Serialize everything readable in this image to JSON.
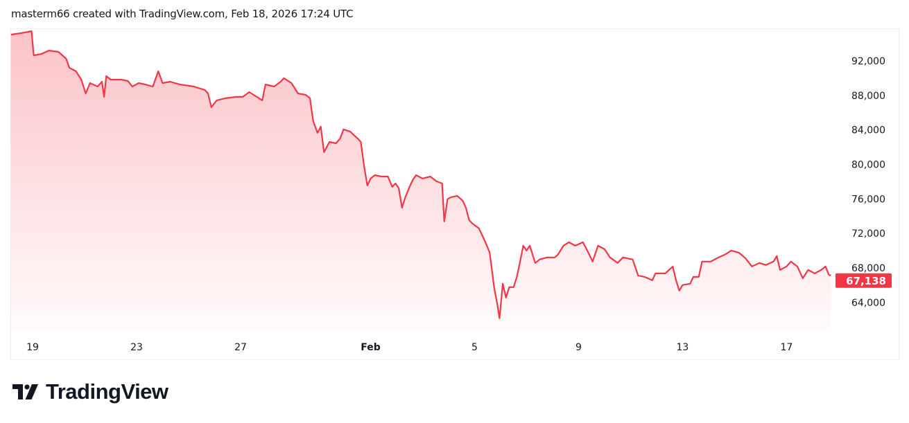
{
  "header": {
    "text": "masterm66 created with TradingView.com, Feb 18, 2026 17:24 UTC"
  },
  "logo": {
    "text": "TradingView"
  },
  "colors": {
    "line": "#f23645",
    "fill": "#f23645",
    "price_tag": "#f23645",
    "text": "#131722"
  },
  "chart_data": {
    "type": "area",
    "title": "",
    "xlabel": "",
    "ylabel": "",
    "last_price_label": "67,138",
    "last_price": 67138,
    "xlim": [
      "2026-01-18T03:30",
      "2026-02-18T18:00"
    ],
    "ylim": [
      60700,
      95770
    ],
    "x_ticks": [
      {
        "date": "2026-01-19T00:00",
        "label": "19"
      },
      {
        "date": "2026-01-23T00:00",
        "label": "23"
      },
      {
        "date": "2026-01-27T00:00",
        "label": "27"
      },
      {
        "date": "2026-02-01T00:00",
        "label": "Feb"
      },
      {
        "date": "2026-02-05T00:00",
        "label": "5"
      },
      {
        "date": "2026-02-09T00:00",
        "label": "9"
      },
      {
        "date": "2026-02-13T00:00",
        "label": "13"
      },
      {
        "date": "2026-02-17T00:00",
        "label": "17"
      }
    ],
    "y_ticks": [
      {
        "value": 92000,
        "label": "92,000"
      },
      {
        "value": 88000,
        "label": "88,000"
      },
      {
        "value": 84000,
        "label": "84,000"
      },
      {
        "value": 80000,
        "label": "80,000"
      },
      {
        "value": 76000,
        "label": "76,000"
      },
      {
        "value": 72000,
        "label": "72,000"
      },
      {
        "value": 68000,
        "label": "68,000"
      },
      {
        "value": 64000,
        "label": "64,000"
      }
    ],
    "grid": false,
    "points": [
      [
        "2026-01-18T04:00",
        95050
      ],
      [
        "2026-01-18T13:00",
        95210
      ],
      [
        "2026-01-18T23:00",
        95450
      ],
      [
        "2026-01-19T01:00",
        92640
      ],
      [
        "2026-01-19T08:00",
        92800
      ],
      [
        "2026-01-19T15:00",
        93200
      ],
      [
        "2026-01-20T00:00",
        93040
      ],
      [
        "2026-01-20T07:00",
        92240
      ],
      [
        "2026-01-20T10:00",
        91200
      ],
      [
        "2026-01-20T16:00",
        90800
      ],
      [
        "2026-01-20T21:00",
        89830
      ],
      [
        "2026-01-21T01:00",
        88230
      ],
      [
        "2026-01-21T05:00",
        89430
      ],
      [
        "2026-01-21T12:00",
        89030
      ],
      [
        "2026-01-21T16:00",
        89590
      ],
      [
        "2026-01-21T18:00",
        87830
      ],
      [
        "2026-01-21T20:00",
        90240
      ],
      [
        "2026-01-22T00:00",
        89830
      ],
      [
        "2026-01-22T10:00",
        89830
      ],
      [
        "2026-01-22T16:00",
        89670
      ],
      [
        "2026-01-22T20:00",
        89030
      ],
      [
        "2026-01-23T02:00",
        89430
      ],
      [
        "2026-01-23T08:00",
        89270
      ],
      [
        "2026-01-23T15:00",
        89030
      ],
      [
        "2026-01-23T20:00",
        90800
      ],
      [
        "2026-01-24T00:00",
        89430
      ],
      [
        "2026-01-24T07:00",
        89590
      ],
      [
        "2026-01-24T16:00",
        89270
      ],
      [
        "2026-01-25T05:00",
        89030
      ],
      [
        "2026-01-25T15:00",
        88630
      ],
      [
        "2026-01-25T18:00",
        88230
      ],
      [
        "2026-01-25T21:00",
        86630
      ],
      [
        "2026-01-26T02:00",
        87430
      ],
      [
        "2026-01-26T10:00",
        87670
      ],
      [
        "2026-01-26T20:00",
        87830
      ],
      [
        "2026-01-27T02:00",
        87830
      ],
      [
        "2026-01-27T08:00",
        88390
      ],
      [
        "2026-01-27T15:00",
        87830
      ],
      [
        "2026-01-27T20:00",
        87430
      ],
      [
        "2026-01-27T23:00",
        89270
      ],
      [
        "2026-01-28T07:00",
        89030
      ],
      [
        "2026-01-28T13:00",
        89590
      ],
      [
        "2026-01-28T16:00",
        90000
      ],
      [
        "2026-01-28T23:00",
        89430
      ],
      [
        "2026-01-29T05:00",
        88230
      ],
      [
        "2026-01-29T12:00",
        88070
      ],
      [
        "2026-01-29T16:00",
        87670
      ],
      [
        "2026-01-29T19:00",
        85020
      ],
      [
        "2026-01-29T23:00",
        83660
      ],
      [
        "2026-01-30T02:00",
        84380
      ],
      [
        "2026-01-30T05:00",
        81410
      ],
      [
        "2026-01-30T10:00",
        82610
      ],
      [
        "2026-01-30T16:00",
        82450
      ],
      [
        "2026-01-30T20:00",
        83020
      ],
      [
        "2026-01-30T23:00",
        84060
      ],
      [
        "2026-01-31T05:00",
        83820
      ],
      [
        "2026-01-31T12:00",
        83020
      ],
      [
        "2026-01-31T15:00",
        82610
      ],
      [
        "2026-01-31T18:00",
        79810
      ],
      [
        "2026-01-31T21:00",
        77560
      ],
      [
        "2026-02-01T00:00",
        78360
      ],
      [
        "2026-02-01T04:00",
        78760
      ],
      [
        "2026-02-01T10:00",
        78600
      ],
      [
        "2026-02-01T16:00",
        78600
      ],
      [
        "2026-02-01T20:00",
        77400
      ],
      [
        "2026-02-01T23:00",
        77800
      ],
      [
        "2026-02-02T02:00",
        77240
      ],
      [
        "2026-02-02T05:00",
        74990
      ],
      [
        "2026-02-02T08:00",
        76200
      ],
      [
        "2026-02-02T12:00",
        77400
      ],
      [
        "2026-02-02T15:00",
        78200
      ],
      [
        "2026-02-02T18:00",
        78760
      ],
      [
        "2026-02-03T00:00",
        78360
      ],
      [
        "2026-02-03T07:00",
        78600
      ],
      [
        "2026-02-03T13:00",
        78040
      ],
      [
        "2026-02-03T18:00",
        77800
      ],
      [
        "2026-02-03T20:00",
        73390
      ],
      [
        "2026-02-03T23:00",
        75960
      ],
      [
        "2026-02-04T02:00",
        76200
      ],
      [
        "2026-02-04T08:00",
        76360
      ],
      [
        "2026-02-04T13:00",
        75800
      ],
      [
        "2026-02-04T16:00",
        74990
      ],
      [
        "2026-02-04T19:00",
        73550
      ],
      [
        "2026-02-04T22:00",
        73150
      ],
      [
        "2026-02-05T04:00",
        72590
      ],
      [
        "2026-02-05T10:00",
        70980
      ],
      [
        "2026-02-05T14:00",
        69780
      ],
      [
        "2026-02-05T16:00",
        67770
      ],
      [
        "2026-02-05T18:00",
        65770
      ],
      [
        "2026-02-05T21:00",
        63760
      ],
      [
        "2026-02-05T23:00",
        62160
      ],
      [
        "2026-02-06T02:00",
        66170
      ],
      [
        "2026-02-06T05:00",
        64560
      ],
      [
        "2026-02-06T08:00",
        65770
      ],
      [
        "2026-02-06T12:00",
        65770
      ],
      [
        "2026-02-06T15:00",
        66970
      ],
      [
        "2026-02-06T18:00",
        68740
      ],
      [
        "2026-02-06T21:00",
        70580
      ],
      [
        "2026-02-07T00:00",
        70020
      ],
      [
        "2026-02-07T03:00",
        70580
      ],
      [
        "2026-02-07T08:00",
        68580
      ],
      [
        "2026-02-07T12:00",
        68980
      ],
      [
        "2026-02-07T19:00",
        69220
      ],
      [
        "2026-02-08T02:00",
        69220
      ],
      [
        "2026-02-08T05:00",
        69540
      ],
      [
        "2026-02-08T10:00",
        70580
      ],
      [
        "2026-02-08T15:00",
        70980
      ],
      [
        "2026-02-08T21:00",
        70580
      ],
      [
        "2026-02-09T04:00",
        70980
      ],
      [
        "2026-02-09T09:00",
        69780
      ],
      [
        "2026-02-09T13:00",
        68740
      ],
      [
        "2026-02-09T18:00",
        70580
      ],
      [
        "2026-02-10T00:00",
        70180
      ],
      [
        "2026-02-10T05:00",
        69220
      ],
      [
        "2026-02-10T12:00",
        68580
      ],
      [
        "2026-02-10T17:00",
        69220
      ],
      [
        "2026-02-11T02:00",
        68980
      ],
      [
        "2026-02-11T07:00",
        67130
      ],
      [
        "2026-02-11T13:00",
        66970
      ],
      [
        "2026-02-11T20:00",
        66570
      ],
      [
        "2026-02-11T23:00",
        67370
      ],
      [
        "2026-02-12T08:00",
        67370
      ],
      [
        "2026-02-12T15:00",
        68170
      ],
      [
        "2026-02-12T18:00",
        66570
      ],
      [
        "2026-02-12T21:00",
        65370
      ],
      [
        "2026-02-13T00:00",
        66010
      ],
      [
        "2026-02-13T07:00",
        66170
      ],
      [
        "2026-02-13T10:00",
        66970
      ],
      [
        "2026-02-13T15:00",
        66970
      ],
      [
        "2026-02-13T18:00",
        68740
      ],
      [
        "2026-02-14T02:00",
        68740
      ],
      [
        "2026-02-14T08:00",
        69140
      ],
      [
        "2026-02-14T15:00",
        69540
      ],
      [
        "2026-02-14T21:00",
        70020
      ],
      [
        "2026-02-15T04:00",
        69780
      ],
      [
        "2026-02-15T10:00",
        69140
      ],
      [
        "2026-02-15T16:00",
        68170
      ],
      [
        "2026-02-15T23:00",
        68580
      ],
      [
        "2026-02-16T05:00",
        68340
      ],
      [
        "2026-02-16T12:00",
        68740
      ],
      [
        "2026-02-16T15:00",
        69380
      ],
      [
        "2026-02-16T18:00",
        67770
      ],
      [
        "2026-02-17T00:00",
        68170
      ],
      [
        "2026-02-17T04:00",
        68740
      ],
      [
        "2026-02-17T10:00",
        68170
      ],
      [
        "2026-02-17T15:00",
        66810
      ],
      [
        "2026-02-17T20:00",
        67770
      ],
      [
        "2026-02-18T02:00",
        67370
      ],
      [
        "2026-02-18T08:00",
        67770
      ],
      [
        "2026-02-18T12:00",
        68170
      ],
      [
        "2026-02-18T15:00",
        67210
      ],
      [
        "2026-02-18T17:00",
        67138
      ]
    ]
  }
}
